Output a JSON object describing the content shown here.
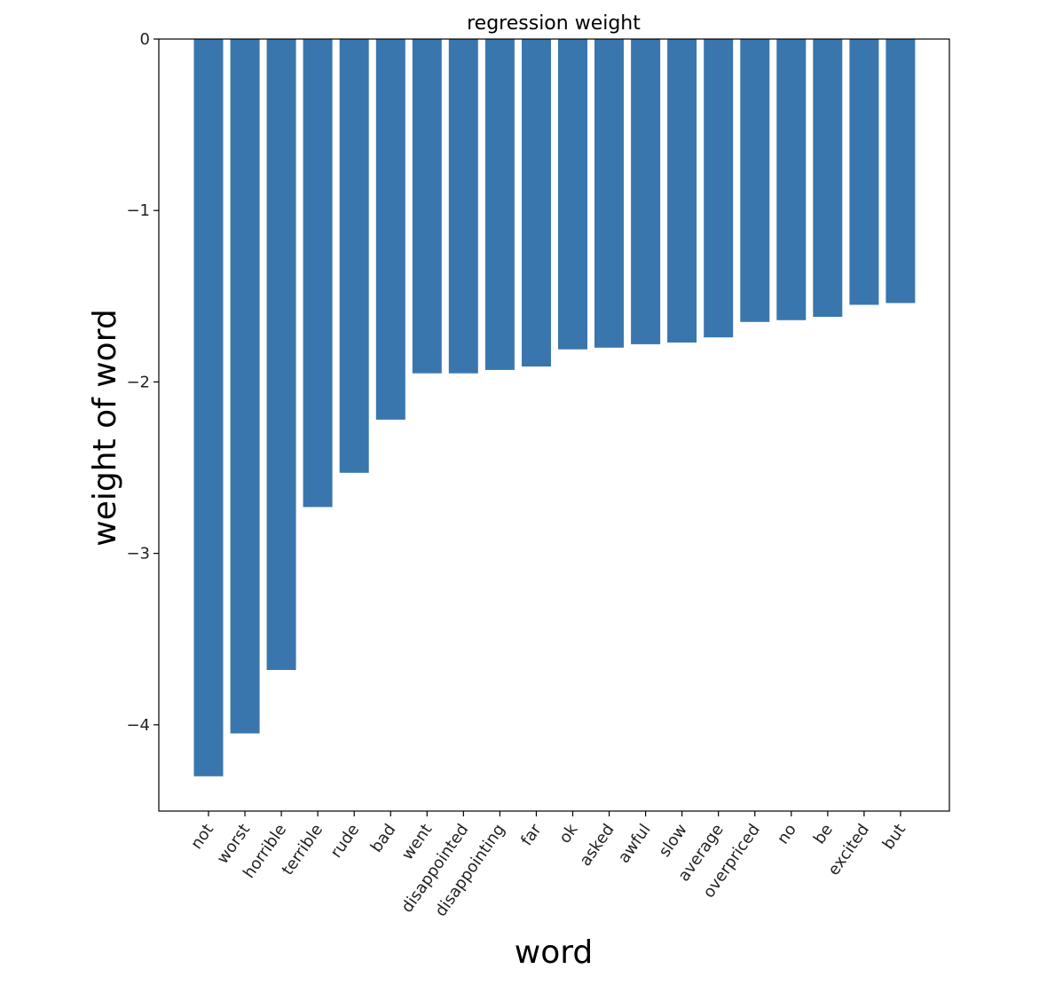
{
  "chart_data": {
    "type": "bar",
    "title": "regression weight",
    "xlabel": "word",
    "ylabel": "weight of word",
    "categories": [
      "not",
      "worst",
      "horrible",
      "terrible",
      "rude",
      "bad",
      "went",
      "disappointed",
      "disappointing",
      "far",
      "ok",
      "asked",
      "awful",
      "slow",
      "average",
      "overpriced",
      "no",
      "be",
      "excited",
      "but"
    ],
    "values": [
      -4.3,
      -4.05,
      -3.68,
      -2.73,
      -2.53,
      -2.22,
      -1.95,
      -1.95,
      -1.93,
      -1.91,
      -1.81,
      -1.8,
      -1.78,
      -1.77,
      -1.74,
      -1.65,
      -1.64,
      -1.62,
      -1.55,
      -1.54
    ],
    "ylim": [
      -4.5,
      0
    ],
    "yticks": [
      0,
      -1,
      -2,
      -3,
      -4
    ],
    "ytick_labels": [
      "0",
      "−1",
      "−2",
      "−3",
      "−4"
    ],
    "bar_color": "#3a76ae",
    "grid": false
  }
}
